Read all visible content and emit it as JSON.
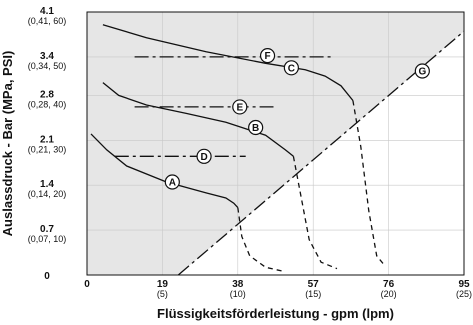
{
  "chart_data": {
    "type": "line",
    "title": "",
    "xlabel": "Flüssigkeitsförderleistung - gpm (lpm)",
    "ylabel": "Auslassdruck - Bar (MPa, PSI)",
    "xlim": [
      0,
      95
    ],
    "ylim": [
      0,
      4.1
    ],
    "x_ticks": [
      {
        "value": 0,
        "label": "0",
        "sub": ""
      },
      {
        "value": 19,
        "label": "19",
        "sub": "(5)"
      },
      {
        "value": 38,
        "label": "38",
        "sub": "(10)"
      },
      {
        "value": 57,
        "label": "57",
        "sub": "(15)"
      },
      {
        "value": 76,
        "label": "76",
        "sub": "(20)"
      },
      {
        "value": 95,
        "label": "95",
        "sub": "(25)"
      }
    ],
    "y_ticks": [
      {
        "value": 0,
        "label": "0",
        "sub": ""
      },
      {
        "value": 0.7,
        "label": "0.7",
        "sub": "(0,07, 10)"
      },
      {
        "value": 1.4,
        "label": "1.4",
        "sub": "(0,14, 20)"
      },
      {
        "value": 2.1,
        "label": "2.1",
        "sub": "(0,21, 30)"
      },
      {
        "value": 2.8,
        "label": "2.8",
        "sub": "(0,28, 40)"
      },
      {
        "value": 3.4,
        "label": "3.4",
        "sub": "(0,34, 50)"
      },
      {
        "value": 4.1,
        "label": "4.1",
        "sub": "(0,41, 60)"
      }
    ],
    "shaded_region": {
      "below_series": "G",
      "fill": "#e6e6e6"
    },
    "series": [
      {
        "name": "A",
        "style": "solid",
        "points": [
          [
            1,
            2.2
          ],
          [
            5,
            1.95
          ],
          [
            10,
            1.7
          ],
          [
            20,
            1.45
          ],
          [
            30,
            1.28
          ],
          [
            35,
            1.2
          ],
          [
            37,
            1.12
          ],
          [
            38,
            1.05
          ]
        ]
      },
      {
        "name": "A",
        "style": "dashed",
        "points": [
          [
            38,
            1.05
          ],
          [
            39,
            0.6
          ],
          [
            41,
            0.3
          ],
          [
            45,
            0.12
          ],
          [
            50,
            0.05
          ]
        ]
      },
      {
        "name": "B",
        "style": "solid",
        "points": [
          [
            4,
            3.0
          ],
          [
            8,
            2.8
          ],
          [
            15,
            2.65
          ],
          [
            25,
            2.52
          ],
          [
            35,
            2.38
          ],
          [
            45,
            2.18
          ],
          [
            50,
            1.95
          ],
          [
            52,
            1.85
          ]
        ]
      },
      {
        "name": "B",
        "style": "dashed",
        "points": [
          [
            52,
            1.85
          ],
          [
            54,
            1.2
          ],
          [
            56,
            0.55
          ],
          [
            59,
            0.2
          ],
          [
            63,
            0.1
          ]
        ]
      },
      {
        "name": "C",
        "style": "solid",
        "points": [
          [
            4,
            3.9
          ],
          [
            15,
            3.7
          ],
          [
            30,
            3.48
          ],
          [
            45,
            3.3
          ],
          [
            55,
            3.2
          ],
          [
            60,
            3.1
          ],
          [
            64,
            2.95
          ],
          [
            67,
            2.72
          ]
        ]
      },
      {
        "name": "C",
        "style": "dashed",
        "points": [
          [
            67,
            2.72
          ],
          [
            69,
            2.0
          ],
          [
            71,
            1.0
          ],
          [
            73,
            0.3
          ],
          [
            75,
            0.15
          ]
        ]
      },
      {
        "name": "D",
        "style": "dashdot",
        "points": [
          [
            7,
            1.85
          ],
          [
            40,
            1.85
          ]
        ]
      },
      {
        "name": "E",
        "style": "dashdot",
        "points": [
          [
            12,
            2.62
          ],
          [
            47,
            2.62
          ]
        ]
      },
      {
        "name": "F",
        "style": "dashdot",
        "points": [
          [
            12,
            3.4
          ],
          [
            62,
            3.4
          ]
        ]
      },
      {
        "name": "G",
        "style": "dashdot",
        "points": [
          [
            23,
            0
          ],
          [
            95,
            3.8
          ]
        ]
      }
    ],
    "markers": [
      {
        "label": "A",
        "x": 21.5,
        "y": 1.45
      },
      {
        "label": "B",
        "x": 42.5,
        "y": 2.3
      },
      {
        "label": "C",
        "x": 51.5,
        "y": 3.23
      },
      {
        "label": "D",
        "x": 29.5,
        "y": 1.85
      },
      {
        "label": "E",
        "x": 38.5,
        "y": 2.62
      },
      {
        "label": "F",
        "x": 45.5,
        "y": 3.42
      },
      {
        "label": "G",
        "x": 84.5,
        "y": 3.18
      }
    ],
    "grid": true,
    "legend": "none"
  }
}
